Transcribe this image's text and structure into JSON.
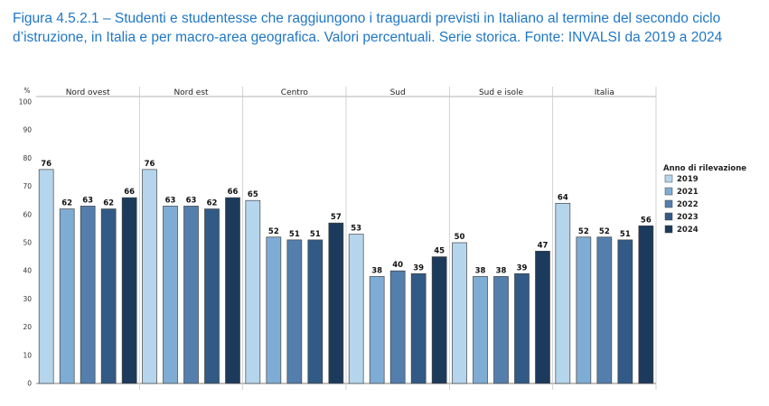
{
  "caption": "Figura 4.5.2.1 – Studenti e studentesse che raggiungono i traguardi previsti in Italiano al termine del secondo ciclo d’istruzione, in Italia e per macro-area geografica. Valori percentuali. Serie storica. Fonte: INVALSI da 2019 a 2024",
  "chart_data": {
    "type": "bar",
    "y_unit": "%",
    "ylim": [
      0,
      100
    ],
    "yticks": [
      0,
      10,
      20,
      30,
      40,
      50,
      60,
      70,
      80,
      90,
      100
    ],
    "grid": false,
    "legend_title": "Anno di rilevazione",
    "legend_position": "right",
    "series": [
      {
        "name": "2019",
        "color": "#b5d5ed"
      },
      {
        "name": "2021",
        "color": "#7eacd4"
      },
      {
        "name": "2022",
        "color": "#547fad"
      },
      {
        "name": "2023",
        "color": "#315a86"
      },
      {
        "name": "2024",
        "color": "#1c3a5c"
      }
    ],
    "panels": [
      {
        "name": "Nord ovest",
        "values": [
          76,
          62,
          63,
          62,
          66
        ]
      },
      {
        "name": "Nord est",
        "values": [
          76,
          63,
          63,
          62,
          66
        ]
      },
      {
        "name": "Centro",
        "values": [
          65,
          52,
          51,
          51,
          57
        ]
      },
      {
        "name": "Sud",
        "values": [
          53,
          38,
          40,
          39,
          45
        ]
      },
      {
        "name": "Sud e isole",
        "values": [
          50,
          38,
          38,
          39,
          47
        ]
      },
      {
        "name": "Italia",
        "values": [
          64,
          52,
          52,
          51,
          56
        ]
      }
    ]
  }
}
